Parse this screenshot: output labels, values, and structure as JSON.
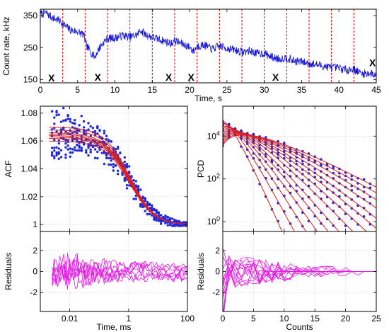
{
  "chart_data": [
    {
      "type": "line",
      "ylabel": "Count rate, kHz",
      "xlabel": "Time, s",
      "xlim": [
        0,
        45
      ],
      "ylim": [
        140,
        370
      ],
      "xticks": [
        0,
        5,
        10,
        15,
        20,
        25,
        30,
        35,
        40,
        45
      ],
      "yticks": [
        150,
        250,
        350
      ],
      "grid": false,
      "series_color": "#1414dc",
      "segment_line_color": "#e60000",
      "segment_boundaries": [
        3,
        6,
        9,
        12,
        15,
        18,
        21,
        24,
        27,
        30,
        33,
        36,
        39,
        42
      ],
      "markers": [
        {
          "text": "X",
          "x": 1.5,
          "y": 155
        },
        {
          "text": "X",
          "x": 7.7,
          "y": 158
        },
        {
          "text": "X",
          "x": 17.2,
          "y": 158
        },
        {
          "text": "X",
          "x": 20.2,
          "y": 158
        },
        {
          "text": "X",
          "x": 31.5,
          "y": 158
        },
        {
          "text": "X",
          "x": 44.5,
          "y": 203
        }
      ],
      "trace_keypoints": [
        [
          0,
          355
        ],
        [
          0.8,
          358
        ],
        [
          1.5,
          345
        ],
        [
          2.5,
          335
        ],
        [
          3,
          325
        ],
        [
          4,
          305
        ],
        [
          5,
          300
        ],
        [
          5.8,
          290
        ],
        [
          6.2,
          255
        ],
        [
          6.8,
          235
        ],
        [
          7.3,
          220
        ],
        [
          7.8,
          245
        ],
        [
          8.5,
          268
        ],
        [
          9,
          278
        ],
        [
          10,
          280
        ],
        [
          11,
          288
        ],
        [
          12,
          283
        ],
        [
          13,
          290
        ],
        [
          13.4,
          305
        ],
        [
          14,
          292
        ],
        [
          15,
          282
        ],
        [
          16,
          275
        ],
        [
          17,
          268
        ],
        [
          17.5,
          262
        ],
        [
          18,
          272
        ],
        [
          19,
          262
        ],
        [
          20,
          252
        ],
        [
          20.5,
          238
        ],
        [
          21,
          255
        ],
        [
          22,
          258
        ],
        [
          23,
          245
        ],
        [
          24,
          255
        ],
        [
          25,
          248
        ],
        [
          26,
          243
        ],
        [
          27,
          236
        ],
        [
          28,
          240
        ],
        [
          29,
          232
        ],
        [
          30,
          232
        ],
        [
          31,
          220
        ],
        [
          32,
          215
        ],
        [
          33,
          218
        ],
        [
          34,
          208
        ],
        [
          35,
          206
        ],
        [
          36,
          200
        ],
        [
          37,
          197
        ],
        [
          38,
          192
        ],
        [
          39,
          188
        ],
        [
          40,
          186
        ],
        [
          41,
          180
        ],
        [
          42,
          183
        ],
        [
          43,
          168
        ],
        [
          44,
          170
        ],
        [
          45,
          165
        ]
      ]
    },
    {
      "type": "scatter",
      "ylabel": "ACF",
      "xscale": "log",
      "xlim": [
        0.001,
        100
      ],
      "ylim": [
        0.995,
        1.085
      ],
      "yticks": [
        1,
        1.02,
        1.04,
        1.06,
        1.08
      ],
      "grid": true,
      "point_color": "#1e28dc",
      "fit_color": "#dc1e1e",
      "curve_params": {
        "amplitude": [
          0.06,
          0.062,
          0.063,
          0.064,
          0.065,
          0.066,
          0.068,
          0.07
        ],
        "tau_ms": 1.1,
        "offset": 1.0
      }
    },
    {
      "type": "line",
      "ylabel": "Residuals",
      "xlabel": "Time, ms",
      "xscale": "log",
      "xlim": [
        0.001,
        100
      ],
      "ylim": [
        -3.8,
        3.8
      ],
      "yticks": [
        -2,
        0,
        2
      ],
      "xticks": [
        0.01,
        1,
        100
      ],
      "xticklabels": [
        "0.01",
        "1",
        "100"
      ],
      "grid": true,
      "color": "#e619e6"
    },
    {
      "type": "scatter",
      "ylabel": "PCD",
      "yscale": "log",
      "xlim": [
        0,
        25
      ],
      "ylim": [
        0.35,
        250000
      ],
      "yticks": [
        1,
        100,
        10000
      ],
      "yticklabels": [
        "10^0",
        "10^2",
        "10^4"
      ],
      "grid": true,
      "point_color": "#1e28dc",
      "fit_color": "#dc1e1e",
      "curve_params": {
        "total": 100000,
        "mean_counts": [
          0.7,
          1.0,
          1.3,
          1.6,
          1.9,
          2.2,
          2.6,
          3.0,
          3.4,
          3.8,
          4.3,
          4.8,
          5.3,
          5.8
        ]
      }
    },
    {
      "type": "line",
      "ylabel": "Residuals",
      "xlabel": "Counts",
      "xlim": [
        0,
        25
      ],
      "ylim": [
        -3.8,
        3.8
      ],
      "yticks": [
        -2,
        0,
        2
      ],
      "xticks": [
        0,
        5,
        10,
        15,
        20,
        25
      ],
      "grid": true,
      "color": "#e619e6"
    }
  ]
}
